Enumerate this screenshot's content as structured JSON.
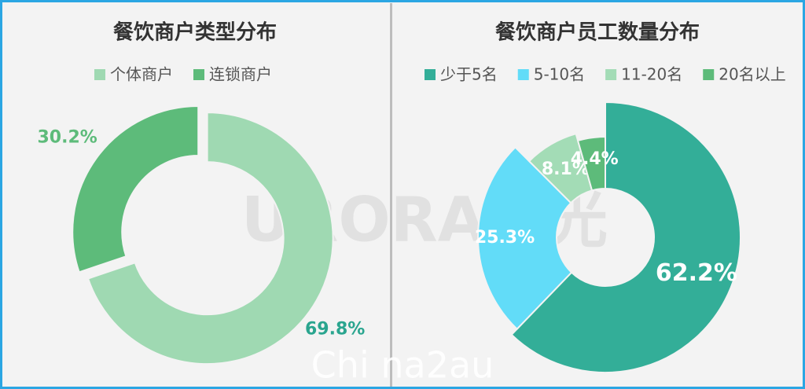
{
  "chart_data": [
    {
      "type": "donut",
      "title": "餐饮商户类型分布",
      "categories": [
        "个体商户",
        "连锁商户"
      ],
      "values": [
        69.8,
        30.2
      ],
      "value_labels": [
        "69.8%",
        "30.2%"
      ],
      "colors": [
        "#9fd9b2",
        "#5dbb7a"
      ],
      "label_colors": [
        "#2aa58f",
        "#5dbb7a"
      ]
    },
    {
      "type": "donut",
      "title": "餐饮商户员工数量分布",
      "categories": [
        "少于5名",
        "5-10名",
        "11-20名",
        "20名以上"
      ],
      "values": [
        62.2,
        25.3,
        8.1,
        4.4
      ],
      "value_labels": [
        "62.2%",
        "25.3%",
        "8.1%",
        "4.4%"
      ],
      "colors": [
        "#33ae98",
        "#62dcf8",
        "#a3dcb6",
        "#5dbb7a"
      ],
      "label_colors": [
        "#ffffff",
        "#ffffff",
        "#ffffff",
        "#ffffff"
      ]
    }
  ],
  "watermarks": [
    "URORA极光",
    "Chi na2au"
  ]
}
